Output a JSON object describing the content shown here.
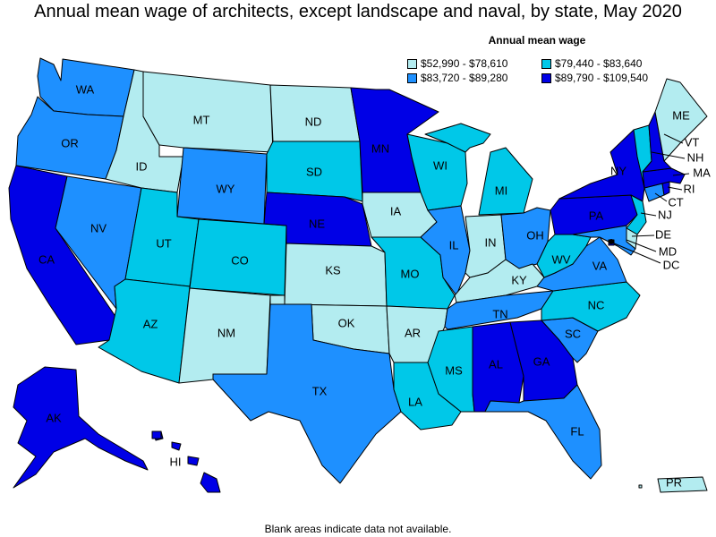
{
  "title": "Annual mean wage of architects, except landscape and naval, by state, May 2020",
  "legend": {
    "title": "Annual mean wage",
    "items": [
      {
        "label": "$52,990 - $78,610",
        "color": "#b3ecf0"
      },
      {
        "label": "$79,440 - $83,640",
        "color": "#00c8e8"
      },
      {
        "label": "$83,720 - $89,280",
        "color": "#1e90ff"
      },
      {
        "label": "$89,790 - $109,540",
        "color": "#0000e6"
      }
    ]
  },
  "footnote": "Blank areas indicate data not available.",
  "states": {
    "WA": 2,
    "OR": 2,
    "CA": 3,
    "NV": 2,
    "ID": 0,
    "MT": 0,
    "WY": 2,
    "UT": 1,
    "CO": 1,
    "AZ": 1,
    "NM": 0,
    "ND": 0,
    "SD": 1,
    "NE": 3,
    "KS": 0,
    "OK": 0,
    "TX": 2,
    "MN": 3,
    "IA": 0,
    "MO": 1,
    "AR": 0,
    "LA": 1,
    "WI": 1,
    "IL": 2,
    "MI": 1,
    "IN": 0,
    "OH": 2,
    "KY": 0,
    "TN": 2,
    "MS": 1,
    "AL": 3,
    "GA": 3,
    "FL": 2,
    "SC": 2,
    "NC": 1,
    "VA": 2,
    "WV": 1,
    "PA": 3,
    "NY": 3,
    "VT": 1,
    "NH": 3,
    "ME": 0,
    "MA": 3,
    "RI": 3,
    "CT": 2,
    "NJ": 1,
    "DE": 0,
    "MD": 2,
    "DC": 3,
    "AK": 3,
    "HI": 3,
    "PR": 0
  }
}
